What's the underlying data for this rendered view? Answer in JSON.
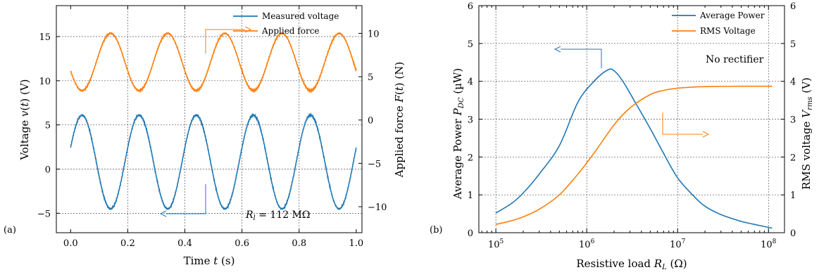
{
  "chart_data": [
    {
      "panel_label": "(a)",
      "type": "line",
      "xlabel": "Time t (s)",
      "ylabel_left": "Voltage v(t) (V)",
      "ylabel_right": "Applied force F(t) (N)",
      "xlim": [
        -0.05,
        1.02
      ],
      "ylim_left": [
        -7.2,
        18.5
      ],
      "ylim_right": [
        -13.0,
        13.2
      ],
      "grid": true,
      "legend_position": "top-right",
      "x_ticks": [
        0.0,
        0.2,
        0.4,
        0.6,
        0.8,
        1.0
      ],
      "x_tick_labels": [
        "0.0",
        "0.2",
        "0.4",
        "0.6",
        "0.8",
        "1.0"
      ],
      "y_left_ticks": [
        -5,
        0,
        5,
        10,
        15
      ],
      "y_left_tick_labels": [
        "−5",
        "0",
        "5",
        "10",
        "15"
      ],
      "y_right_ticks": [
        -10,
        -5,
        0,
        5,
        10
      ],
      "y_right_tick_labels": [
        "−10",
        "−5",
        "0",
        "5",
        "10"
      ],
      "annotation": "R_l = 112 MΩ",
      "series": [
        {
          "name": "Measured voltage",
          "axis": "left",
          "color": "#1f77b4",
          "frequency_hz": 5,
          "amplitude": 5.3,
          "offset": 0.8,
          "peak_value": 6.1,
          "trough_value": -4.5,
          "x": [
            0.0,
            0.04,
            0.09,
            0.14,
            0.19,
            0.24,
            0.29,
            0.34,
            0.39,
            0.44,
            0.49,
            0.54,
            0.59,
            0.64,
            0.69,
            0.74,
            0.79,
            0.84,
            0.89,
            0.94,
            0.99
          ],
          "values": [
            1.2,
            6.1,
            0.8,
            -4.5,
            0.8,
            6.1,
            0.8,
            -4.5,
            0.8,
            6.1,
            0.8,
            -4.5,
            0.8,
            6.1,
            0.8,
            -4.5,
            0.8,
            6.1,
            0.8,
            -4.5,
            2.0
          ]
        },
        {
          "name": "Applied force",
          "axis": "right",
          "color": "#ff7f0e",
          "frequency_hz": 5,
          "amplitude": 3.3,
          "offset": 6.7,
          "peak_value": 10.0,
          "trough_value": 3.4,
          "x": [
            0.0,
            0.04,
            0.09,
            0.14,
            0.19,
            0.24,
            0.29,
            0.34,
            0.39,
            0.44,
            0.49,
            0.54,
            0.59,
            0.64,
            0.69,
            0.74,
            0.79,
            0.84,
            0.89,
            0.94,
            0.99
          ],
          "values": [
            5.9,
            3.4,
            6.7,
            10.0,
            6.7,
            3.4,
            6.7,
            10.0,
            6.7,
            3.4,
            6.7,
            10.0,
            6.7,
            3.4,
            6.7,
            10.0,
            6.7,
            3.4,
            6.7,
            10.0,
            5.5
          ]
        }
      ]
    },
    {
      "panel_label": "(b)",
      "type": "line",
      "xscale": "log",
      "xlabel": "Resistive load R_L (Ω)",
      "ylabel_left": "Average Power P_DC (µW)",
      "ylabel_right": "RMS voltage V_rms (V)",
      "xlim": [
        65000,
        150000000
      ],
      "ylim_left": [
        0,
        6
      ],
      "ylim_right": [
        0,
        6
      ],
      "grid": true,
      "legend_position": "top-right",
      "x_ticks": [
        100000,
        1000000,
        10000000,
        100000000
      ],
      "x_tick_labels": [
        {
          "base": "10",
          "exp": "5"
        },
        {
          "base": "10",
          "exp": "6"
        },
        {
          "base": "10",
          "exp": "7"
        },
        {
          "base": "10",
          "exp": "8"
        }
      ],
      "y_left_ticks": [
        0,
        1,
        2,
        3,
        4,
        5,
        6
      ],
      "y_left_tick_labels": [
        "0",
        "1",
        "2",
        "3",
        "4",
        "5",
        "6"
      ],
      "y_right_ticks": [
        0,
        1,
        2,
        3,
        4,
        5,
        6
      ],
      "y_right_tick_labels": [
        "0",
        "1",
        "2",
        "3",
        "4",
        "5",
        "6"
      ],
      "annotation": "No rectifier",
      "series": [
        {
          "name": "Average Power",
          "axis": "left",
          "color": "#1f77b4",
          "x": [
            100000,
            150000,
            200000,
            300000,
            500000,
            800000,
            1200000,
            1700000,
            2000000,
            2500000,
            3500000,
            5000000,
            7000000,
            10000000,
            15000000,
            20000000,
            30000000,
            50000000,
            70000000,
            110000000
          ],
          "values": [
            0.52,
            0.78,
            1.05,
            1.55,
            2.3,
            3.45,
            4.0,
            4.3,
            4.28,
            4.0,
            3.4,
            2.75,
            2.1,
            1.45,
            0.97,
            0.7,
            0.48,
            0.3,
            0.22,
            0.12
          ]
        },
        {
          "name": "RMS Voltage",
          "axis": "right",
          "color": "#ff7f0e",
          "x": [
            100000,
            150000,
            200000,
            300000,
            500000,
            800000,
            1200000,
            2000000,
            3000000,
            5000000,
            7000000,
            10000000,
            20000000,
            50000000,
            110000000
          ],
          "values": [
            0.22,
            0.32,
            0.42,
            0.62,
            1.0,
            1.55,
            2.1,
            2.85,
            3.3,
            3.65,
            3.76,
            3.82,
            3.86,
            3.87,
            3.87
          ]
        }
      ]
    }
  ]
}
